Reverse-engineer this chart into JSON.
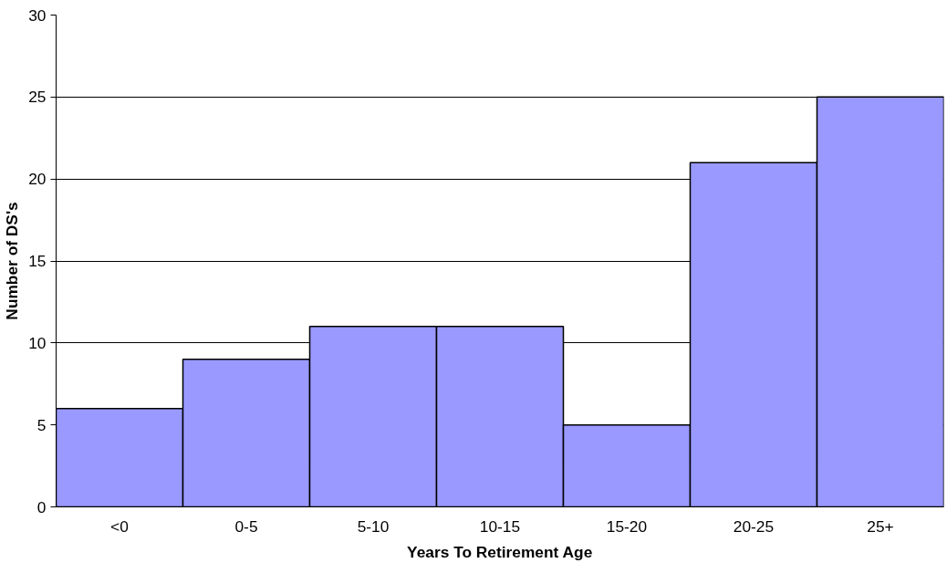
{
  "chart_data": {
    "type": "bar",
    "xlabel": "Years To Retirement Age",
    "ylabel": "Number of DS's",
    "categories": [
      "<0",
      "0-5",
      "5-10",
      "10-15",
      "15-20",
      "20-25",
      "25+"
    ],
    "values": [
      6,
      9,
      11,
      11,
      5,
      21,
      25
    ],
    "color": "#9999ff",
    "ylim": [
      0,
      30
    ],
    "yticks": [
      0,
      5,
      10,
      15,
      20,
      25,
      30
    ],
    "grid": "y"
  }
}
